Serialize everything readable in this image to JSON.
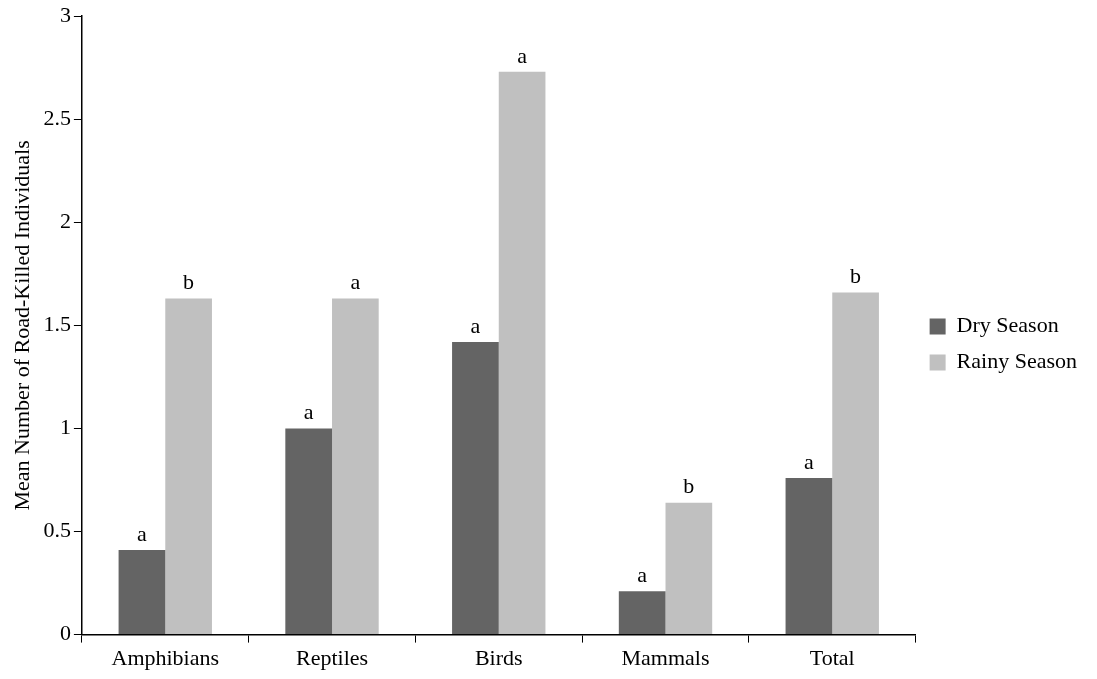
{
  "chart_data": {
    "type": "bar",
    "ylabel": "Mean Number of Road-Killed Individuals",
    "categories": [
      "Amphibians",
      "Reptiles",
      "Birds",
      "Mammals",
      "Total"
    ],
    "series": [
      {
        "name": "Dry Season",
        "color": "#646464",
        "values": [
          0.41,
          1.0,
          1.42,
          0.21,
          0.76
        ]
      },
      {
        "name": "Rainy Season",
        "color": "#c0c0c0",
        "values": [
          1.63,
          1.63,
          2.73,
          0.64,
          1.66
        ]
      }
    ],
    "ylim": [
      0,
      3
    ],
    "yticks": [
      0,
      0.5,
      1,
      1.5,
      2,
      2.5,
      3
    ],
    "grid": false,
    "legend": "right",
    "annotations": [
      {
        "text": "a",
        "x": "Amphibians",
        "y": 0.41
      },
      {
        "text": "b",
        "x": "Amphibians",
        "y": 1.63
      },
      {
        "text": "a",
        "x": "Reptiles",
        "y": 1.0
      },
      {
        "text": "a",
        "x": "Reptiles",
        "y": 1.63
      },
      {
        "text": "a",
        "x": "Birds",
        "y": 1.42
      },
      {
        "text": "a",
        "x": "Birds",
        "y": 2.73
      },
      {
        "text": "a",
        "x": "Mammals",
        "y": 0.21
      },
      {
        "text": "b",
        "x": "Mammals",
        "y": 0.64
      },
      {
        "text": "a",
        "x": "Total",
        "y": 0.76
      },
      {
        "text": "b",
        "x": "Total",
        "y": 1.66
      }
    ]
  }
}
